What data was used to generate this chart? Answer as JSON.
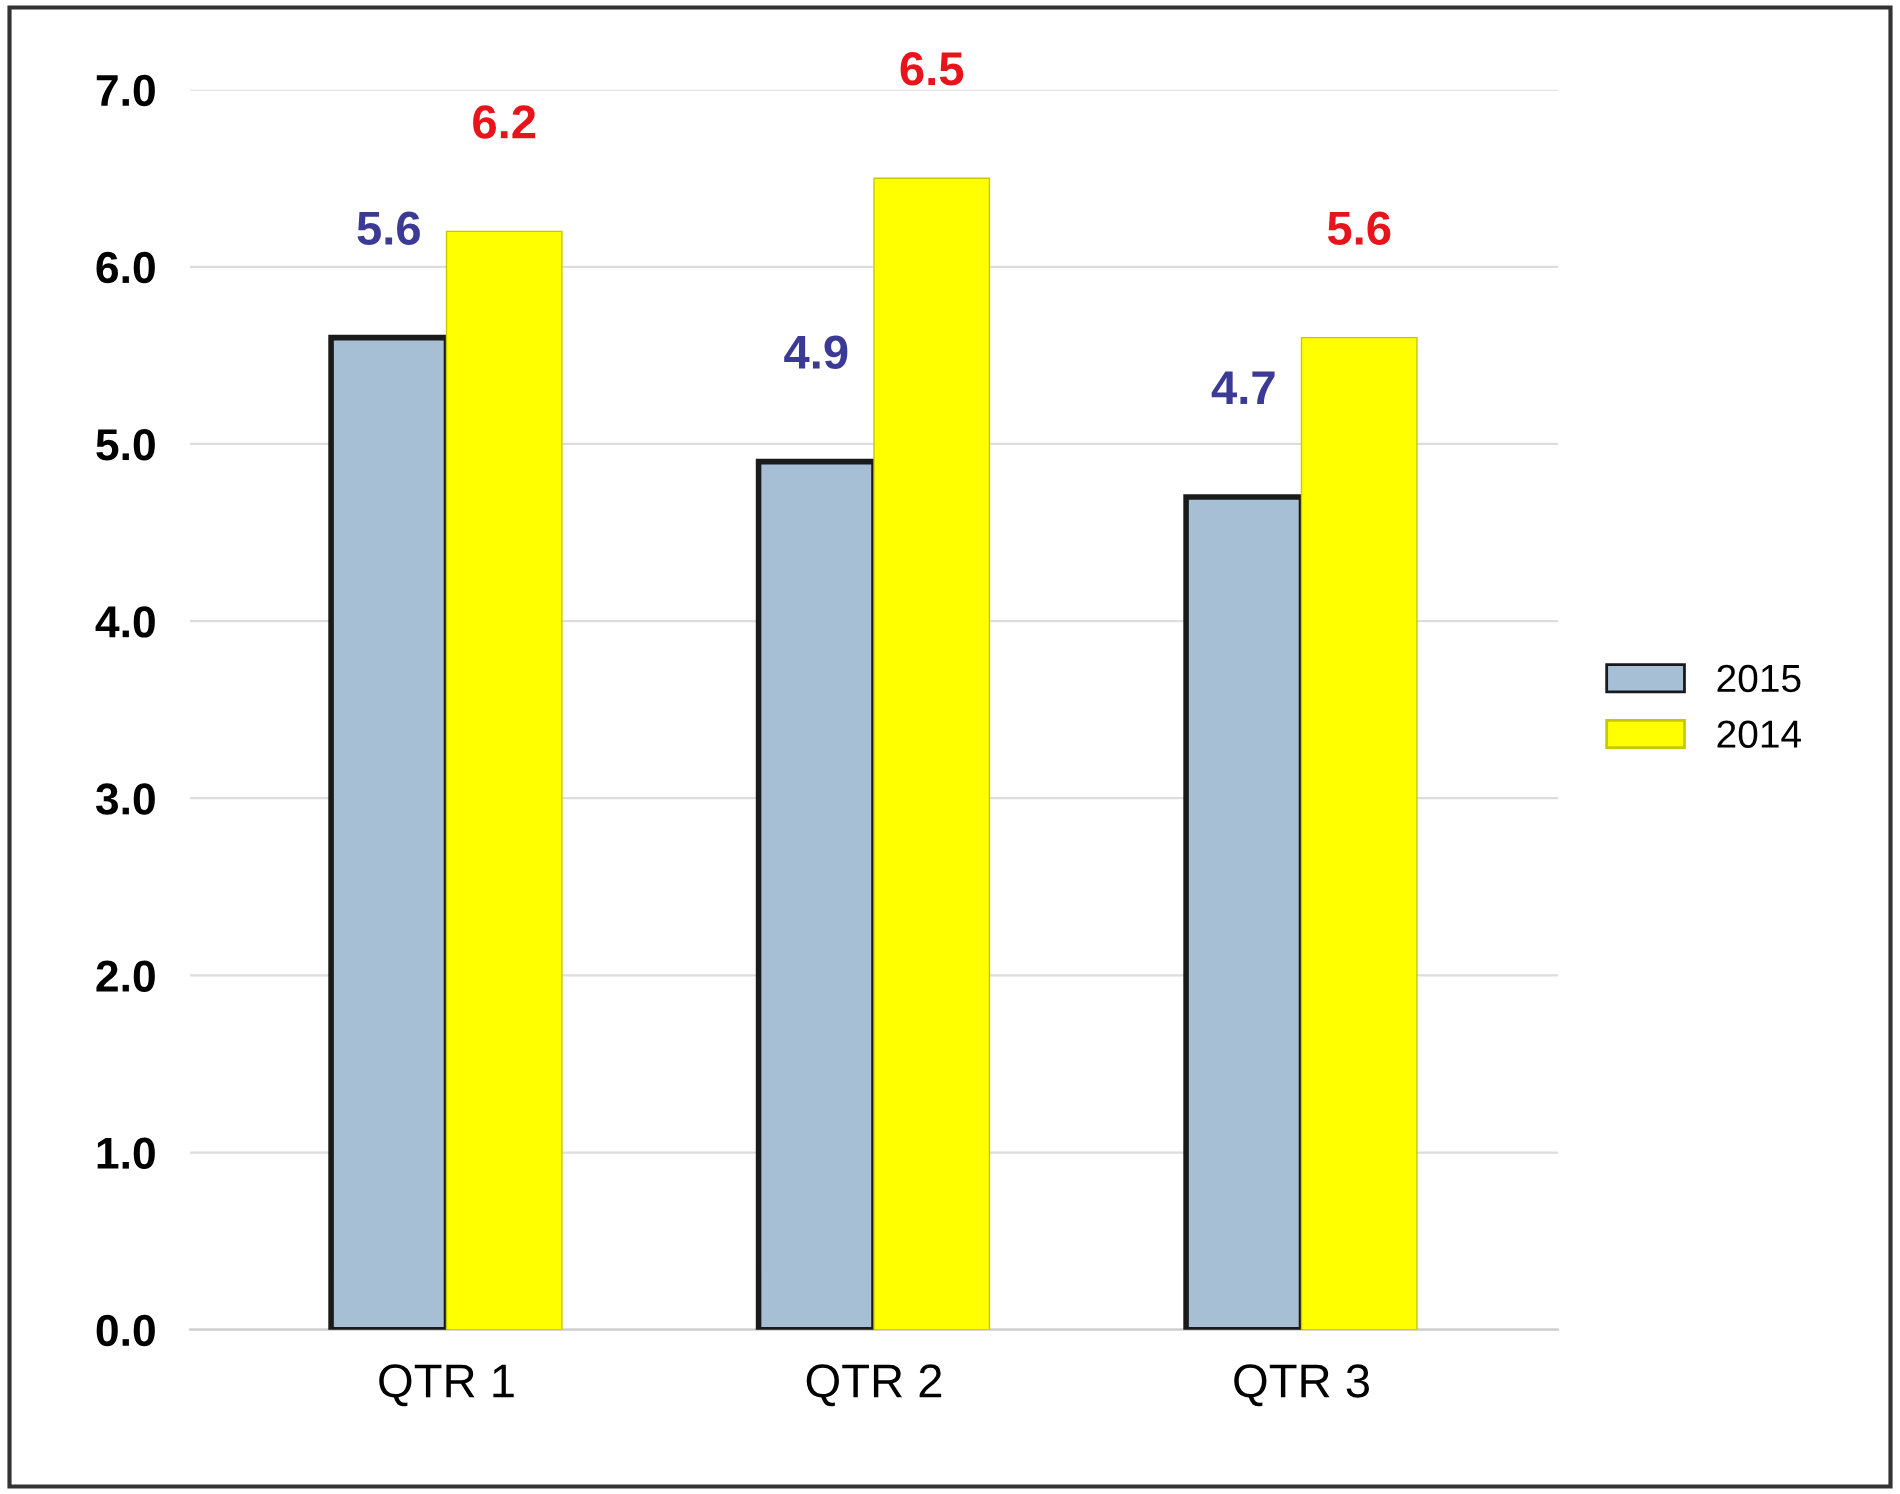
{
  "chart_data": {
    "type": "bar",
    "categories": [
      "QTR 1",
      "QTR 2",
      "QTR 3"
    ],
    "series": [
      {
        "name": "2015",
        "color": "#a6bfd4",
        "values": [
          5.6,
          4.9,
          4.7
        ]
      },
      {
        "name": "2014",
        "color": "#ffff00",
        "values": [
          6.2,
          6.5,
          5.6
        ]
      }
    ],
    "ylim": [
      0,
      7
    ],
    "yticks": [
      {
        "value": 0,
        "label": "0.0"
      },
      {
        "value": 1,
        "label": "1.0"
      },
      {
        "value": 2,
        "label": "2.0"
      },
      {
        "value": 3,
        "label": "3.0"
      },
      {
        "value": 4,
        "label": "4.0"
      },
      {
        "value": 5,
        "label": "5.0"
      },
      {
        "value": 6,
        "label": "6.0"
      },
      {
        "value": 7,
        "label": "7.0"
      }
    ],
    "grid": "y",
    "legend": "right",
    "data_labels": true
  }
}
